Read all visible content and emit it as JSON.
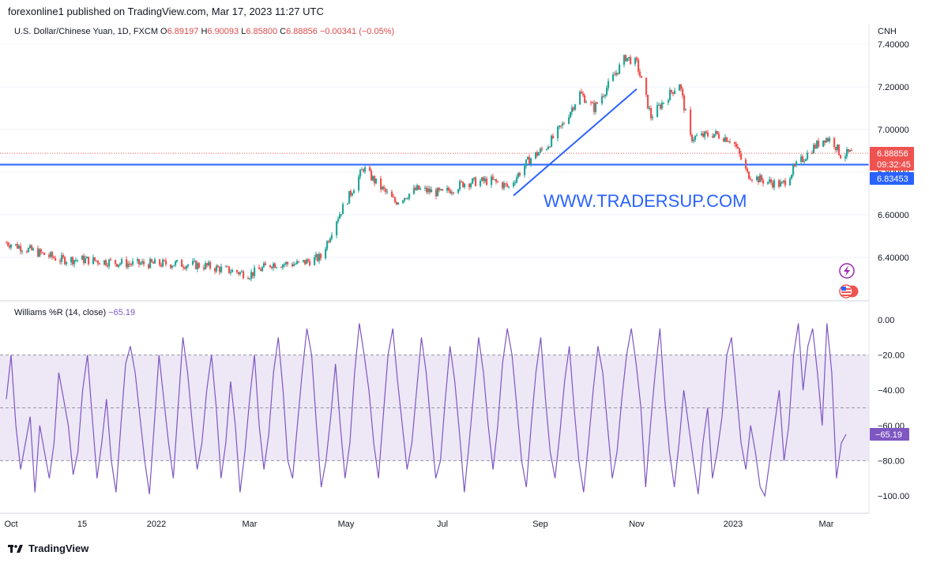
{
  "header": {
    "published": "forexonline1 published on TradingView.com, Mar 17, 2023 11:27 UTC"
  },
  "legend": {
    "symbol": "U.S. Dollar/Chinese Yuan, 1D, FXCM",
    "o_label": "O",
    "o_value": "6.89197",
    "h_label": "H",
    "h_value": "6.90093",
    "l_label": "L",
    "l_value": "6.85800",
    "c_label": "C",
    "c_value": "6.88856",
    "change": "−0.00341 (−0.05%)"
  },
  "indicator_legend": {
    "name": "Williams %R (14, close)",
    "value": "−65.19"
  },
  "watermark": "WWW.TRADERSUP.COM",
  "brand": "TradingView",
  "colors": {
    "up": "#26a69a",
    "down": "#ef5350",
    "line": "#2962ff",
    "wr": "#7e57c2",
    "wr_band": "#ede7f6"
  },
  "icons": [
    "lightning-icon",
    "us-flag-icon"
  ],
  "chart_data": [
    {
      "type": "candlestick",
      "currency_label": "CNH",
      "ylim": [
        6.26,
        7.42
      ],
      "y_ticks": [
        "6.40000",
        "6.60000",
        "6.80000",
        "7.00000",
        "7.20000",
        "7.40000"
      ],
      "x_ticks": [
        "Oct",
        "15",
        "2022",
        "Mar",
        "May",
        "Jul",
        "Sep",
        "Nov",
        "2023",
        "Mar"
      ],
      "price_badges": {
        "last": "6.88856",
        "countdown": "09:32:45",
        "level": "6.83453"
      },
      "horizontal_line": 6.835,
      "trend_line": {
        "from": [
          "2022-08-15",
          6.69
        ],
        "to": [
          "2022-11-01",
          7.19
        ]
      },
      "series": [
        {
          "name": "USDCNH",
          "points": [
            [
              "2021-09-28",
              6.47
            ],
            [
              "2021-10-15",
              6.43
            ],
            [
              "2021-11-01",
              6.39
            ],
            [
              "2021-11-15",
              6.39
            ],
            [
              "2021-12-01",
              6.38
            ],
            [
              "2021-12-15",
              6.37
            ],
            [
              "2022-01-01",
              6.37
            ],
            [
              "2022-01-15",
              6.37
            ],
            [
              "2022-02-01",
              6.36
            ],
            [
              "2022-02-15",
              6.34
            ],
            [
              "2022-03-01",
              6.32
            ],
            [
              "2022-03-15",
              6.37
            ],
            [
              "2022-04-01",
              6.37
            ],
            [
              "2022-04-15",
              6.4
            ],
            [
              "2022-04-25",
              6.58
            ],
            [
              "2022-05-01",
              6.66
            ],
            [
              "2022-05-12",
              6.82
            ],
            [
              "2022-05-20",
              6.75
            ],
            [
              "2022-06-01",
              6.66
            ],
            [
              "2022-06-15",
              6.72
            ],
            [
              "2022-07-01",
              6.7
            ],
            [
              "2022-07-15",
              6.75
            ],
            [
              "2022-08-01",
              6.76
            ],
            [
              "2022-08-12",
              6.73
            ],
            [
              "2022-08-25",
              6.86
            ],
            [
              "2022-09-05",
              6.92
            ],
            [
              "2022-09-15",
              7.02
            ],
            [
              "2022-09-26",
              7.17
            ],
            [
              "2022-10-05",
              7.1
            ],
            [
              "2022-10-15",
              7.22
            ],
            [
              "2022-10-25",
              7.34
            ],
            [
              "2022-11-01",
              7.31
            ],
            [
              "2022-11-10",
              7.06
            ],
            [
              "2022-11-20",
              7.15
            ],
            [
              "2022-11-28",
              7.22
            ],
            [
              "2022-12-05",
              6.96
            ],
            [
              "2022-12-20",
              6.98
            ],
            [
              "2023-01-01",
              6.95
            ],
            [
              "2023-01-10",
              6.79
            ],
            [
              "2023-01-20",
              6.76
            ],
            [
              "2023-02-01",
              6.74
            ],
            [
              "2023-02-10",
              6.83
            ],
            [
              "2023-02-20",
              6.91
            ],
            [
              "2023-02-28",
              6.96
            ],
            [
              "2023-03-05",
              6.95
            ],
            [
              "2023-03-10",
              6.88
            ],
            [
              "2023-03-17",
              6.89
            ]
          ]
        }
      ]
    },
    {
      "type": "line",
      "title": "Williams %R (14, close)",
      "ylim": [
        -105,
        3
      ],
      "y_ticks": [
        "0.00",
        "−20.00",
        "−40.00",
        "−60.00",
        "−80.00",
        "−100.00"
      ],
      "bands": [
        -20,
        -50,
        -80
      ],
      "current_value": "−65.19",
      "series": [
        {
          "name": "Williams %R",
          "values": [
            -45,
            -20,
            -60,
            -85,
            -70,
            -55,
            -98,
            -60,
            -75,
            -90,
            -70,
            -30,
            -45,
            -60,
            -88,
            -75,
            -40,
            -20,
            -55,
            -90,
            -70,
            -45,
            -80,
            -98,
            -60,
            -25,
            -15,
            -30,
            -55,
            -80,
            -99,
            -60,
            -20,
            -45,
            -70,
            -90,
            -50,
            -10,
            -30,
            -60,
            -85,
            -70,
            -40,
            -20,
            -50,
            -90,
            -70,
            -35,
            -60,
            -98,
            -75,
            -45,
            -20,
            -60,
            -85,
            -65,
            -30,
            -10,
            -40,
            -80,
            -90,
            -60,
            -30,
            -5,
            -20,
            -60,
            -95,
            -80,
            -55,
            -25,
            -60,
            -90,
            -70,
            -30,
            -2,
            -20,
            -40,
            -70,
            -90,
            -55,
            -20,
            -5,
            -35,
            -60,
            -85,
            -70,
            -40,
            -10,
            -30,
            -60,
            -90,
            -80,
            -45,
            -15,
            -35,
            -65,
            -98,
            -70,
            -40,
            -10,
            -30,
            -60,
            -85,
            -60,
            -25,
            -5,
            -20,
            -50,
            -80,
            -95,
            -60,
            -30,
            -10,
            -45,
            -75,
            -90,
            -65,
            -35,
            -15,
            -50,
            -80,
            -98,
            -70,
            -40,
            -15,
            -30,
            -60,
            -90,
            -75,
            -45,
            -20,
            -5,
            -25,
            -50,
            -95,
            -60,
            -30,
            -5,
            -45,
            -75,
            -95,
            -70,
            -40,
            -60,
            -80,
            -99,
            -70,
            -50,
            -90,
            -75,
            -55,
            -20,
            -10,
            -40,
            -70,
            -85,
            -60,
            -75,
            -95,
            -100,
            -80,
            -60,
            -40,
            -80,
            -60,
            -20,
            -2,
            -40,
            -15,
            -5,
            -30,
            -60,
            -2,
            -30,
            -90,
            -70,
            -65
          ]
        }
      ]
    }
  ]
}
